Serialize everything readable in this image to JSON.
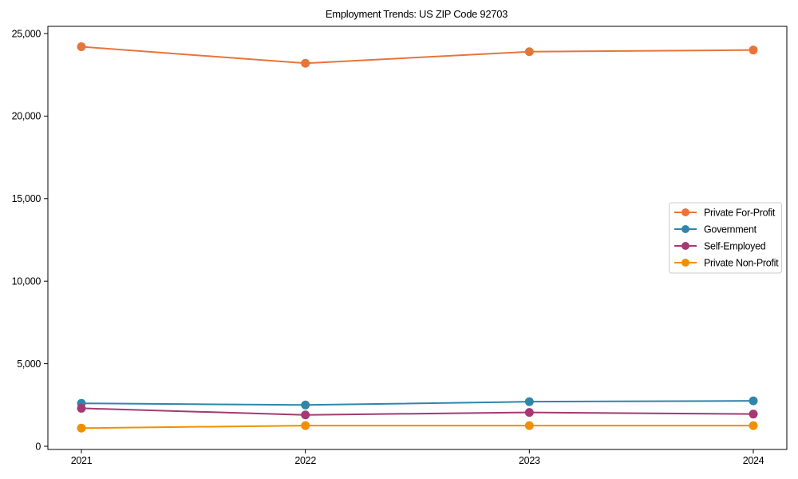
{
  "chart_data": {
    "type": "line",
    "title": "Employment Trends: US ZIP Code 92703",
    "categories": [
      "2021",
      "2022",
      "2023",
      "2024"
    ],
    "series": [
      {
        "name": "Private For-Profit",
        "color": "#E8743B",
        "values": [
          24200,
          23200,
          23900,
          24000
        ]
      },
      {
        "name": "Government",
        "color": "#2E86AB",
        "values": [
          2600,
          2500,
          2700,
          2750
        ]
      },
      {
        "name": "Self-Employed",
        "color": "#A23B72",
        "values": [
          2300,
          1900,
          2050,
          1950
        ]
      },
      {
        "name": "Private Non-Profit",
        "color": "#F18F01",
        "values": [
          1100,
          1250,
          1250,
          1250
        ]
      }
    ],
    "xlabel": "",
    "ylabel": "",
    "ylim": [
      0,
      25000
    ],
    "yticks": [
      0,
      5000,
      10000,
      15000,
      20000,
      25000
    ],
    "ytick_labels": [
      "0",
      "5,000",
      "10,000",
      "15,000",
      "20,000",
      "25,000"
    ],
    "grid": false,
    "marker": "circle",
    "legend_position": "center-right-inside",
    "frame_color": "#000000",
    "legend_border_color": "#cccccc",
    "background_color": "#ffffff"
  }
}
